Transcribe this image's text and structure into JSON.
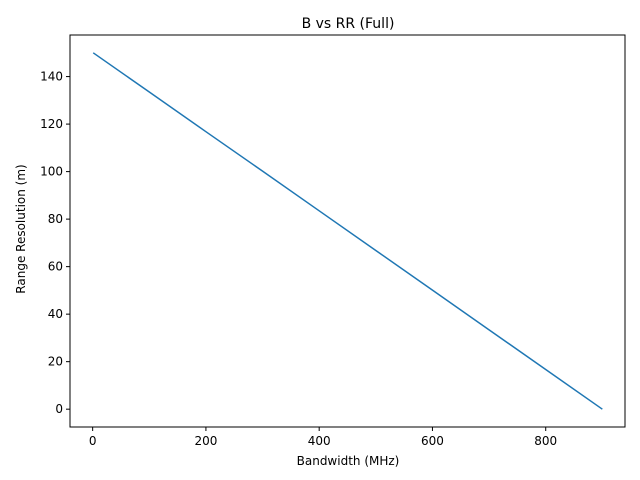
{
  "chart_data": {
    "type": "line",
    "title": "B vs RR (Full)",
    "xlabel": "Bandwidth (MHz)",
    "ylabel": "Range Resolution (m)",
    "xlim": [
      -40,
      940
    ],
    "ylim": [
      -7.5,
      157.5
    ],
    "xticks": [
      0,
      200,
      400,
      600,
      800
    ],
    "yticks": [
      0,
      20,
      40,
      60,
      80,
      100,
      120,
      140
    ],
    "grid": false,
    "legend": "none",
    "series": [
      {
        "color": "#1f77b4",
        "x": [
          1,
          100,
          200,
          300,
          400,
          500,
          600,
          700,
          800,
          900
        ],
        "y": [
          150,
          133.5,
          116.8,
          100.2,
          83.5,
          66.8,
          50.1,
          33.4,
          16.7,
          0
        ]
      }
    ]
  }
}
